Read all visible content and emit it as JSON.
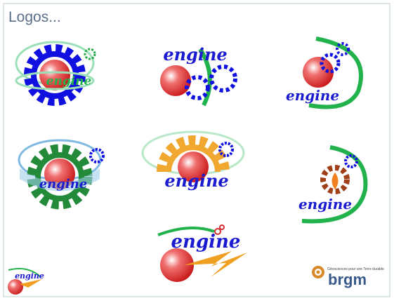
{
  "header": {
    "title": "Logos..."
  },
  "logos": [
    {
      "label": "engine"
    },
    {
      "label": "engine"
    },
    {
      "label": "engine"
    },
    {
      "label": "engine"
    },
    {
      "label": "engine"
    },
    {
      "label": "engine"
    },
    {
      "label": "engine"
    },
    {
      "label": "engine"
    }
  ],
  "brgm": {
    "name": "brgm",
    "tagline": "Géosciences pour une Terre durable"
  }
}
